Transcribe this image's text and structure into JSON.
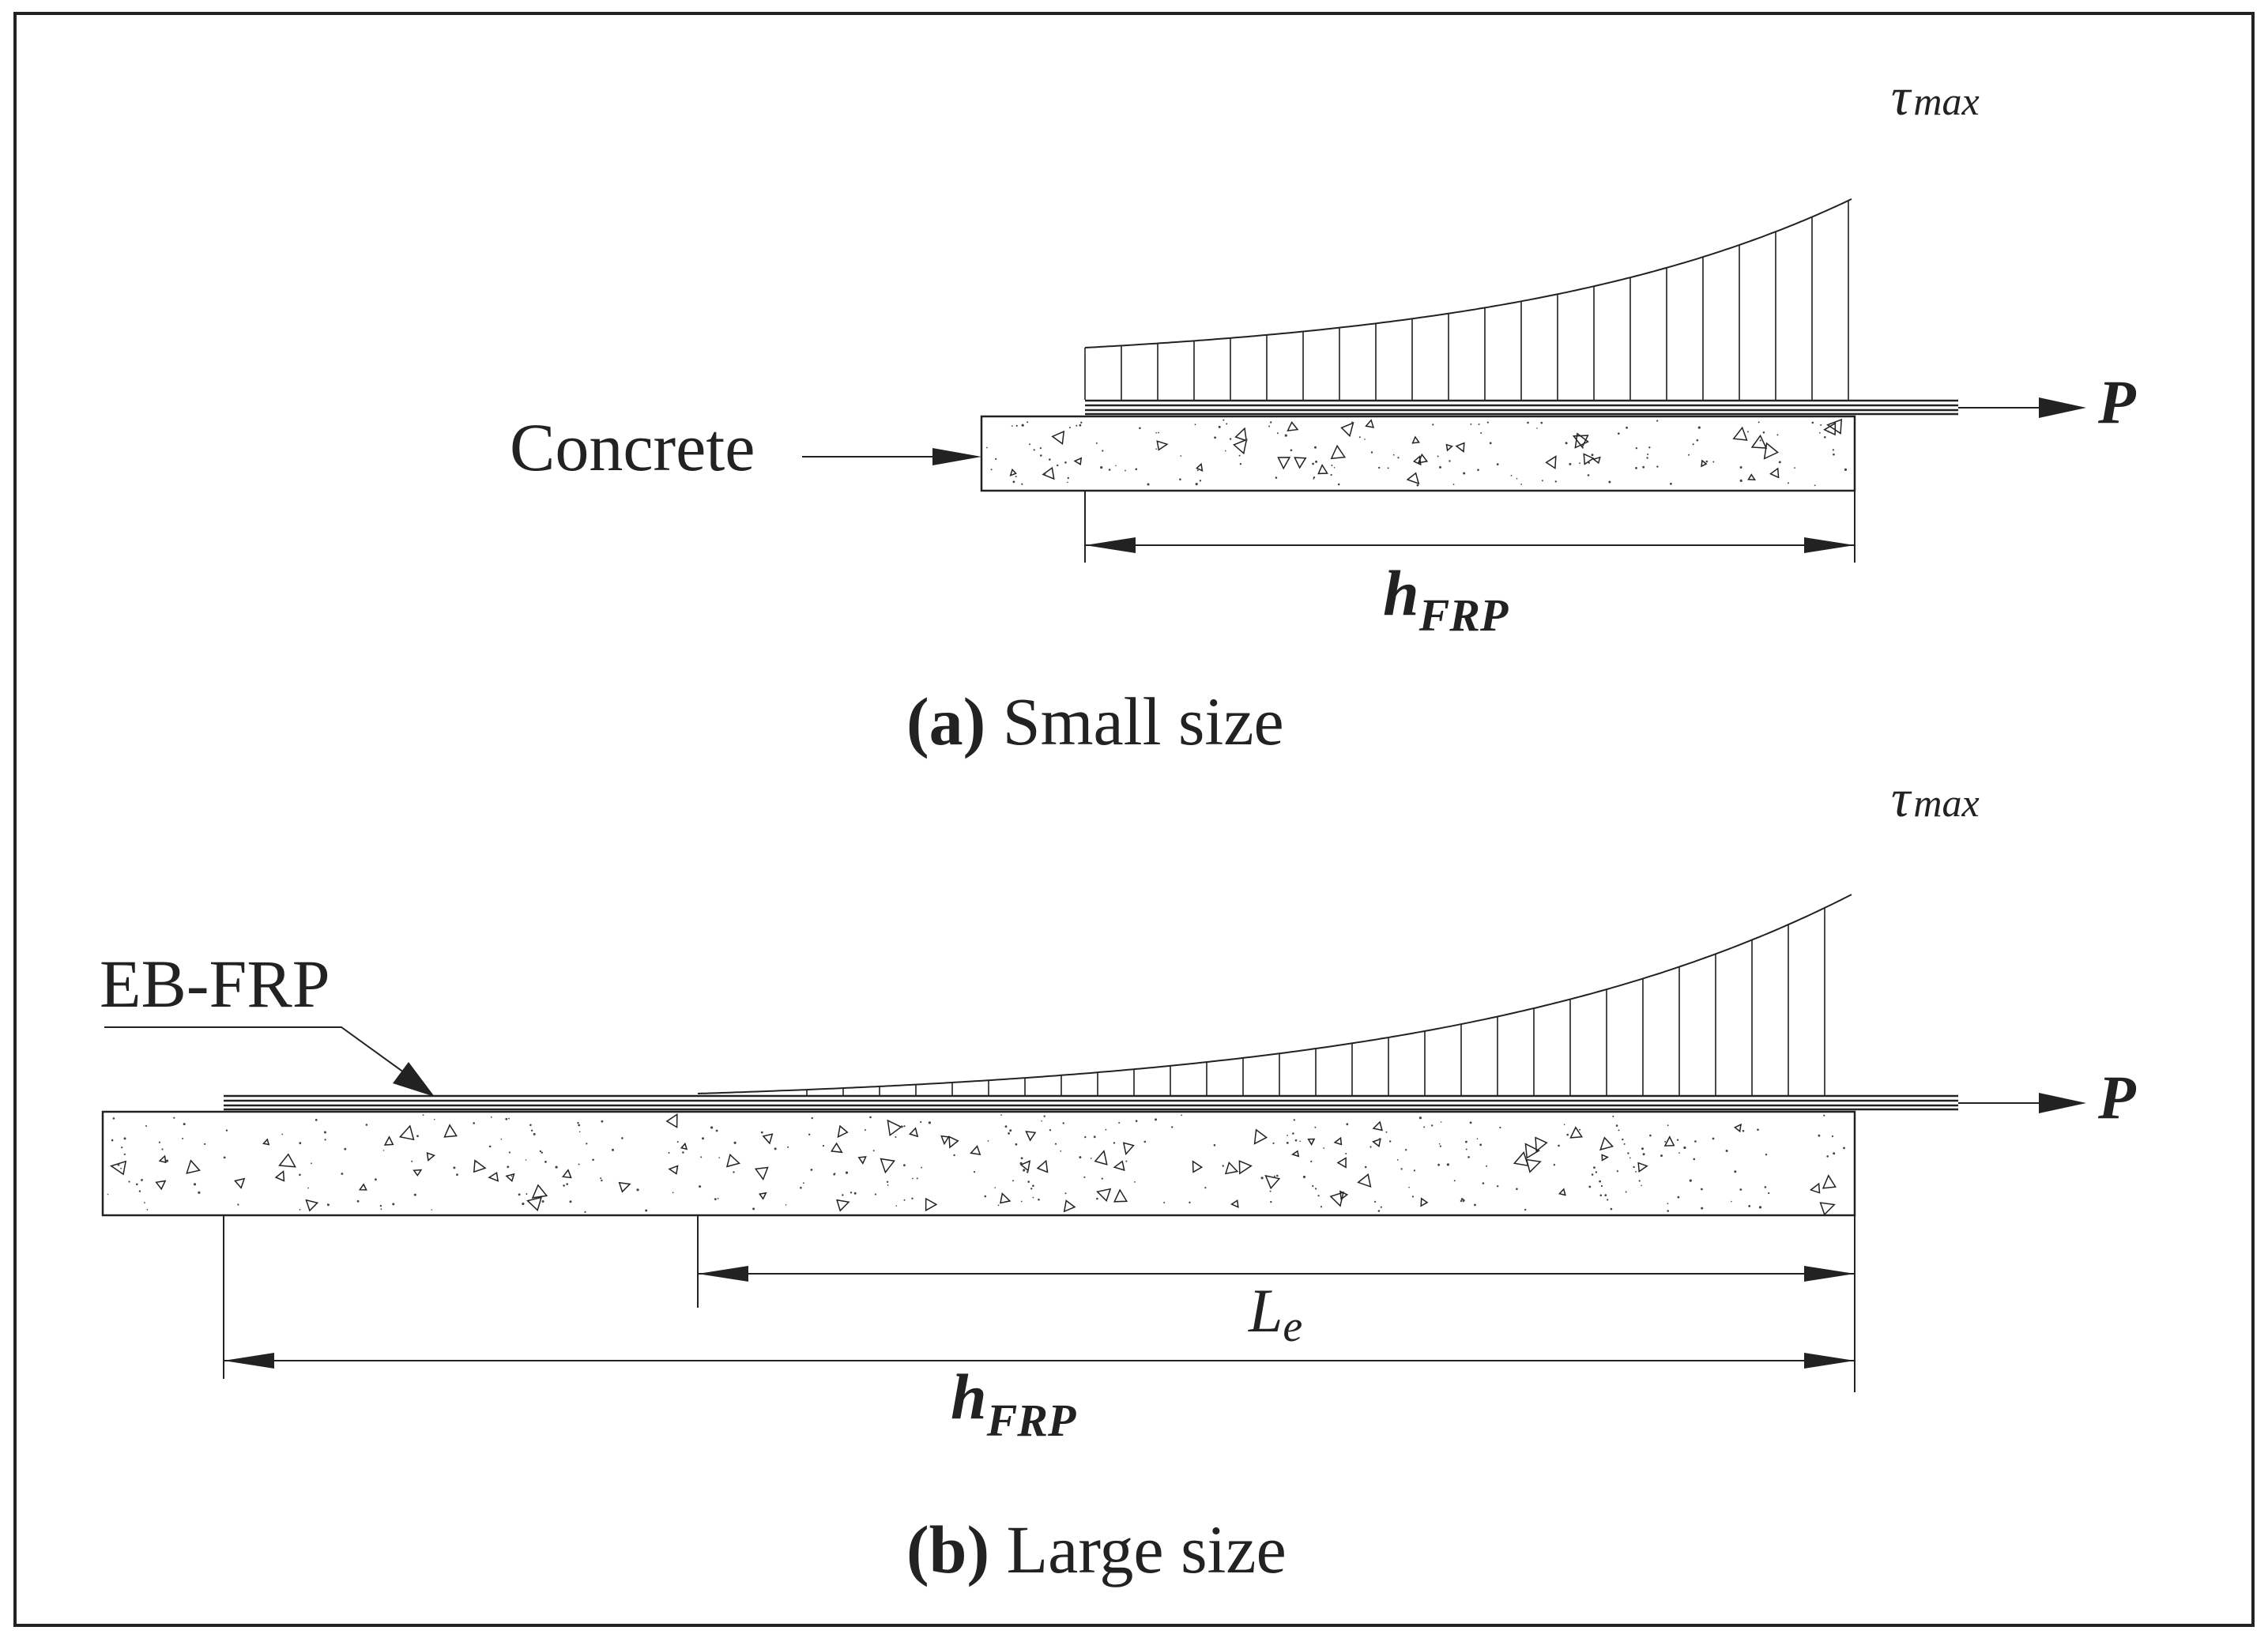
{
  "colors": {
    "line": "#222222",
    "background": "#ffffff",
    "text": "#222222"
  },
  "panel_a": {
    "caption_letter": "(a)",
    "caption_text": " Small size",
    "concrete_label": "Concrete",
    "tau": "τ",
    "tau_sub": "max",
    "load_label": "P",
    "length_main": "h",
    "length_sub": "FRP"
  },
  "panel_b": {
    "caption_letter": "(b)",
    "caption_text": " Large size",
    "frp_label": "EB-FRP",
    "tau": "τ",
    "tau_sub": "max",
    "load_label": "P",
    "effective_main": "L",
    "effective_sub": "e",
    "length_main": "h",
    "length_sub": "FRP"
  }
}
